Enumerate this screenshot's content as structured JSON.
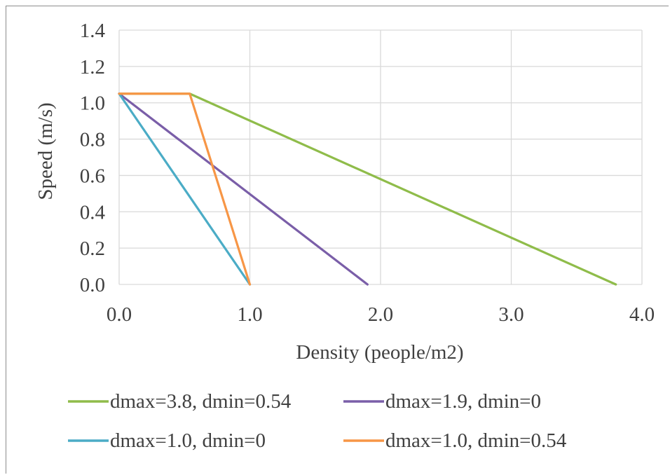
{
  "chart_data": {
    "type": "line",
    "title": "",
    "xlabel": "Density (people/m2)",
    "ylabel": "Speed (m/s)",
    "xlim": [
      0,
      4
    ],
    "ylim": [
      0,
      1.4
    ],
    "x_ticks": [
      "0.0",
      "1.0",
      "2.0",
      "3.0",
      "4.0"
    ],
    "y_ticks": [
      "0.0",
      "0.2",
      "0.4",
      "0.6",
      "0.8",
      "1.0",
      "1.2",
      "1.4"
    ],
    "grid": true,
    "legend_position": "bottom",
    "series": [
      {
        "name": "dmax=3.8, dmin=0.54",
        "color": "#8fbc4a",
        "points": [
          [
            0,
            1.05
          ],
          [
            0.54,
            1.05
          ],
          [
            3.8,
            0
          ]
        ]
      },
      {
        "name": "dmax=1.9, dmin=0",
        "color": "#7a5ea8",
        "points": [
          [
            0,
            1.05
          ],
          [
            1.9,
            0
          ]
        ]
      },
      {
        "name": "dmax=1.0, dmin=0",
        "color": "#4bacc6",
        "points": [
          [
            0,
            1.05
          ],
          [
            1.0,
            0
          ]
        ]
      },
      {
        "name": "dmax=1.0, dmin=0.54",
        "color": "#f79646",
        "points": [
          [
            0,
            1.05
          ],
          [
            0.54,
            1.05
          ],
          [
            1.0,
            0
          ]
        ]
      }
    ]
  }
}
